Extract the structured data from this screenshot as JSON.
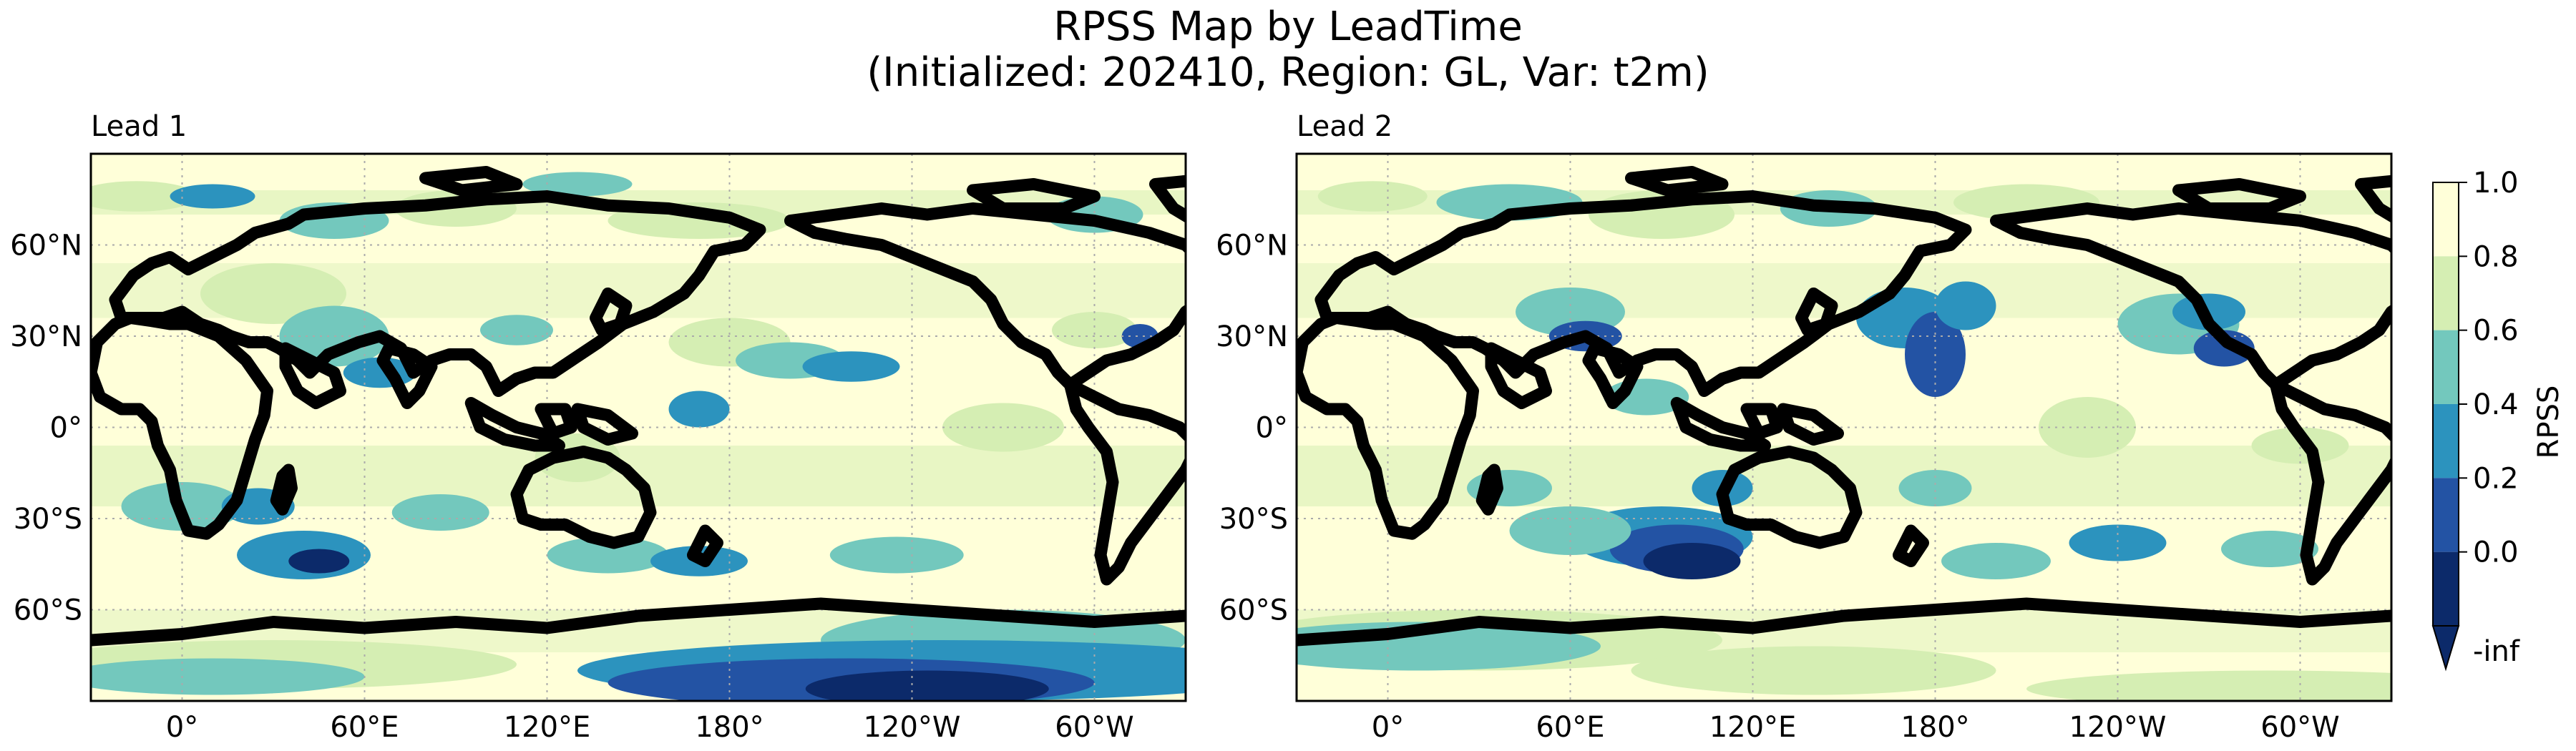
{
  "title": {
    "line1": "RPSS Map by LeadTime",
    "line2": "(Initialized: 202410, Region: GL, Var: t2m)"
  },
  "colors": {
    "background": "#ffffffcc",
    "level_0_8_1_0": "#ffffd9",
    "level_0_6_0_8": "#d5eeb3",
    "level_0_4_0_6": "#73c8bd",
    "level_0_2_0_4": "#2c93be",
    "level_0_0_0_2": "#2353a4",
    "level_neginf_0_0": "#0c2a6a"
  },
  "panels": [
    {
      "id": "lead1",
      "title": "Lead 1"
    },
    {
      "id": "lead2",
      "title": "Lead 2"
    }
  ],
  "axes": {
    "y_ticks": [
      "60°N",
      "30°N",
      "0°",
      "30°S",
      "60°S"
    ],
    "x_ticks": [
      "0°",
      "60°E",
      "120°E",
      "180°",
      "120°W",
      "60°W"
    ]
  },
  "colorbar": {
    "label": "RPSS",
    "tick_labels": [
      "1.0",
      "0.8",
      "0.6",
      "0.4",
      "0.2",
      "0.0",
      "-inf"
    ],
    "levels": [
      1.0,
      0.8,
      0.6,
      0.4,
      0.2,
      0.0
    ]
  },
  "chart_data": {
    "type": "heatmap",
    "variable": "RPSS",
    "lon_range": [
      -30,
      330
    ],
    "lat_range": [
      -90,
      90
    ],
    "central_longitude": 150
  }
}
